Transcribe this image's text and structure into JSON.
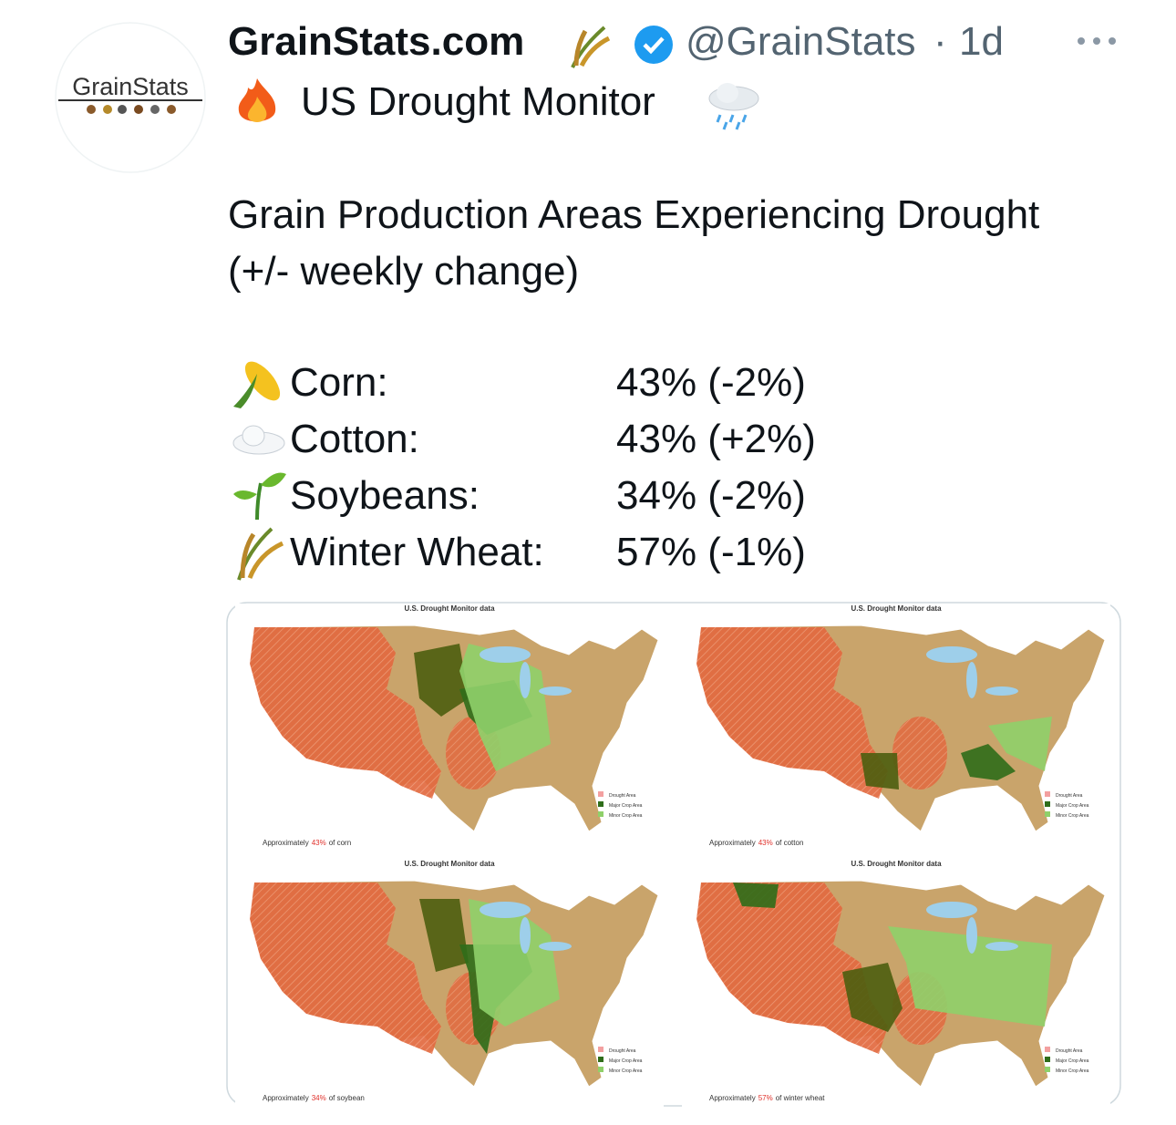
{
  "author": {
    "name": "GrainStats.com",
    "handle": "@GrainStats",
    "separator": "·",
    "time": "1d",
    "avatar_text": "GrainStats"
  },
  "post": {
    "headline": "US Drought Monitor",
    "subtitle": "Grain Production Areas Experiencing Drought",
    "note": "(+/- weekly change)",
    "crops": [
      {
        "name": "Corn:",
        "value": "43% (-2%)"
      },
      {
        "name": "Cotton:",
        "value": "43% (+2%)"
      },
      {
        "name": "Soybeans:",
        "value": "34% (-2%)"
      },
      {
        "name": "Winter Wheat:",
        "value": "57% (-1%)"
      }
    ]
  },
  "map_legend": [
    "Drought Area",
    "Major Crop Area",
    "Minor Crop Area"
  ],
  "maps": [
    {
      "source": "U.S. Drought Monitor data",
      "caption_prefix": "Approximately",
      "caption_value": "43%",
      "caption_suffix": "of corn"
    },
    {
      "source": "U.S. Drought Monitor data",
      "caption_prefix": "Approximately",
      "caption_value": "43%",
      "caption_suffix": "of cotton"
    },
    {
      "source": "U.S. Drought Monitor data",
      "caption_prefix": "Approximately",
      "caption_value": "34%",
      "caption_suffix": "of soybean"
    },
    {
      "source": "U.S. Drought Monitor data",
      "caption_prefix": "Approximately",
      "caption_value": "57%",
      "caption_suffix": "of winter wheat"
    }
  ]
}
